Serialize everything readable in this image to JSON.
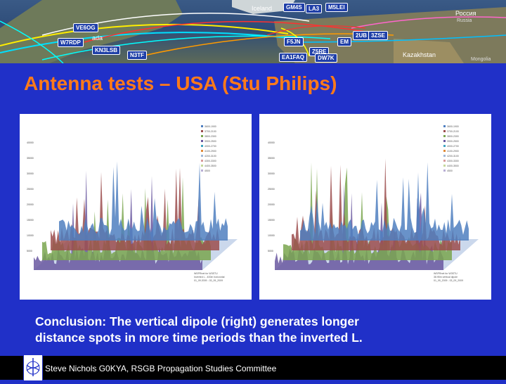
{
  "map": {
    "labels": [
      "Iceland",
      "Россия",
      "Russia",
      "Kazakhstan",
      "Mongolia",
      "ada"
    ],
    "callsigns": [
      "GM4S",
      "LA3",
      "M5LEI",
      "VE6OG",
      "W7RDP",
      "KN3LSB",
      "N3TF",
      "2UB",
      "3ZSE",
      "F5JN",
      "EA1FAQ",
      "Z5RE",
      "DW7K",
      "EM"
    ]
  },
  "title": "Antenna tests – USA (Stu Philips)",
  "charts": {
    "left": {
      "legend": [
        "3600-1900",
        "3700-2100",
        "3800-2300",
        "3900-2500",
        "4000-2700",
        "4100-2900",
        "4200-3100",
        "4300-3300",
        "4400-3500",
        "4500"
      ],
      "yticks": [
        "40000",
        "35000",
        "30000",
        "25000",
        "20000",
        "15000",
        "10000",
        "5000"
      ],
      "note_lines": [
        "WSPRnet for W3STU",
        "Inverted L - 400m horizontal",
        "01_09.2009 - 03_09_2009"
      ]
    },
    "right": {
      "legend": [
        "3600-1900",
        "3700-2100",
        "3800-2300",
        "3900-2500",
        "4000-2700",
        "4100-2900",
        "4200-3100",
        "4300-3300",
        "4400-3500",
        "4500"
      ],
      "yticks": [
        "40000",
        "35000",
        "30000",
        "25000",
        "20000",
        "15000",
        "10000",
        "5000"
      ],
      "note_lines": [
        "WSPRnet for W3STU",
        "38.95m vertical dipole",
        "01_09_2009 - 03_09_2009"
      ]
    }
  },
  "conclusion": {
    "line1": "Conclusion: The vertical dipole (right) generates longer",
    "line2": "distance spots in more time periods than the inverted L."
  },
  "footer": {
    "text": "Steve Nichols G0KYA, RSGB Propagation Studies Committee"
  },
  "colors": {
    "background": "#2030c8",
    "title": "#ff7a1a",
    "footer": "#000000"
  }
}
